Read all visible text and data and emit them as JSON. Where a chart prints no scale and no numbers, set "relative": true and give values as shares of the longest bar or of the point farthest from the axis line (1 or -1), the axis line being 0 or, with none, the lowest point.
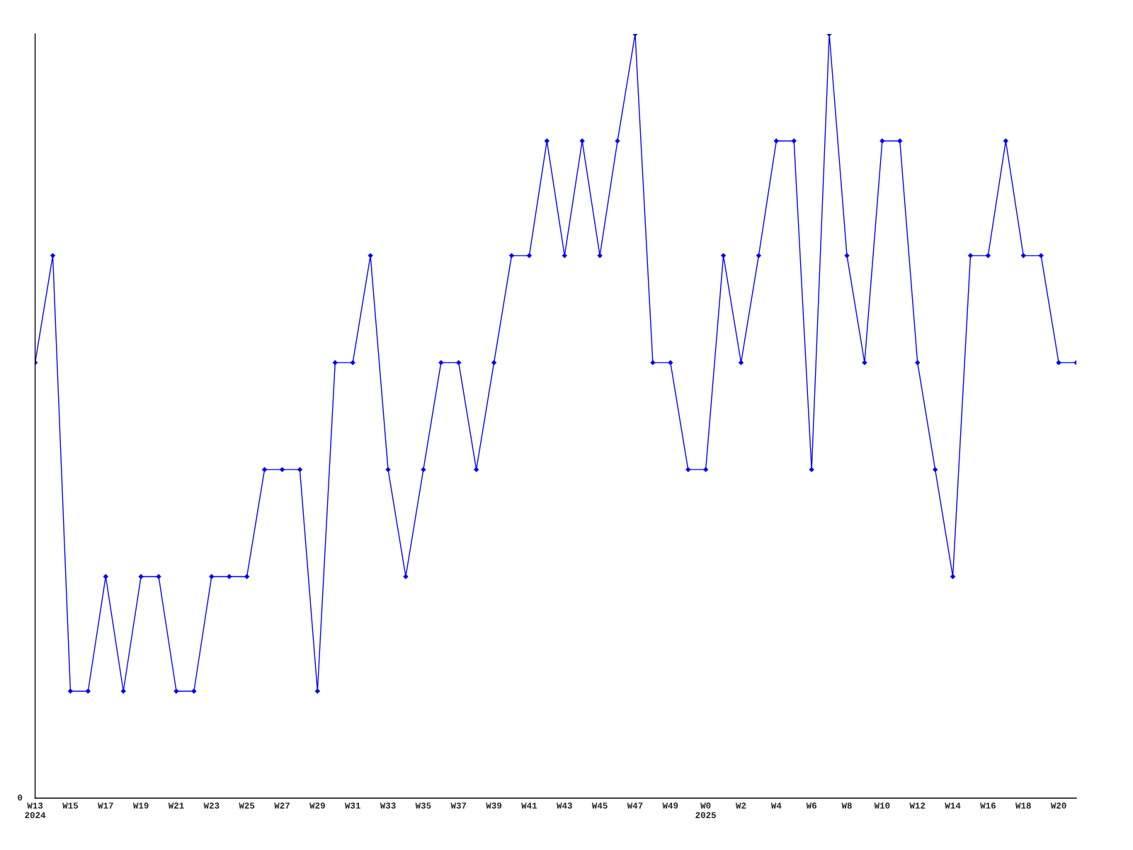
{
  "chart_data": {
    "type": "line",
    "relative": true,
    "color": "#0000ff",
    "marker": "diamond",
    "line_style": "solid",
    "grid": false,
    "annotations": [
      "0"
    ],
    "categories": [
      "W13\n2024",
      null,
      "W15",
      null,
      "W17",
      null,
      "W19",
      null,
      "W21",
      null,
      "W23",
      null,
      "W25",
      null,
      "W27",
      null,
      "W29",
      null,
      "W31",
      null,
      "W33",
      null,
      "W35",
      null,
      "W37",
      null,
      "W39",
      null,
      "W41",
      null,
      "W43",
      null,
      "W45",
      null,
      "W47",
      null,
      "W49",
      null,
      "W0\n2025",
      null,
      "W2",
      null,
      "W4",
      null,
      "W6",
      null,
      "W8",
      null,
      "W10",
      null,
      "W12",
      null,
      "W14",
      null,
      "W16",
      null,
      "W18",
      null,
      "W20",
      null
    ],
    "values": [
      0.57,
      0.71,
      0.14,
      0.14,
      0.29,
      0.14,
      0.29,
      0.29,
      0.14,
      0.14,
      0.29,
      0.29,
      0.29,
      0.43,
      0.43,
      0.43,
      0.14,
      0.57,
      0.57,
      0.71,
      0.43,
      0.29,
      0.43,
      0.57,
      0.57,
      0.43,
      0.57,
      0.71,
      0.71,
      0.86,
      0.71,
      0.86,
      0.71,
      0.86,
      1,
      0.57,
      0.57,
      0.43,
      0.43,
      0.71,
      0.57,
      0.71,
      0.86,
      0.86,
      0.43,
      1,
      0.71,
      0.57,
      0.86,
      0.86,
      0.57,
      0.43,
      0.29,
      0.71,
      0.71,
      0.86,
      0.71,
      0.71,
      0.57,
      0.57
    ]
  }
}
